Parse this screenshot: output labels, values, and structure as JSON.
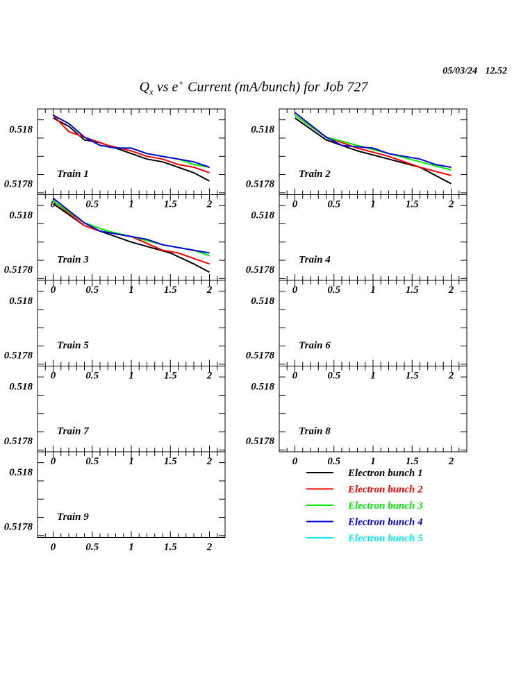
{
  "header": {
    "date": "05/03/24   12.52",
    "title": {
      "q": "Q",
      "q_sub": "x",
      "mid": " vs e",
      "sup": "+",
      "rest": " Current (mA/bunch) for Job 727"
    }
  },
  "colors": {
    "bunch1": "#000000",
    "bunch2": "#ff0000",
    "bunch3": "#00ee00",
    "bunch4": "#0000dd",
    "bunch5": "#00eeee"
  },
  "legend": [
    {
      "label": "Electron bunch 1",
      "color": "#000000"
    },
    {
      "label": "Electron bunch 2",
      "color": "#ff0000"
    },
    {
      "label": "Electron bunch 3",
      "color": "#00ee00"
    },
    {
      "label": "Electron bunch 4",
      "color": "#0000dd"
    },
    {
      "label": "Electron bunch 5",
      "color": "#00eeee"
    }
  ],
  "chart_data": {
    "type": "line",
    "title": "Qx vs e+ Current (mA/bunch) for Job 727",
    "xlim": [
      -0.2,
      2.2
    ],
    "ylim": [
      0.51776,
      0.518073
    ],
    "x_ticks": [
      "0",
      "0.5",
      "1",
      "1.5",
      "2"
    ],
    "x_tick_values": [
      0,
      0.5,
      1,
      1.5,
      2
    ],
    "y_ticks": [
      "0.518",
      "0.5178"
    ],
    "y_tick_values": [
      0.518,
      0.5178
    ],
    "panels": [
      {
        "title": "Train 1",
        "series": [
          {
            "name": "Electron bunch 1",
            "x": [
              0,
              0.2,
              0.4,
              0.6,
              0.8,
              1.0,
              1.2,
              1.4,
              1.6,
              1.8,
              2.0
            ],
            "y": [
              0.51804,
              0.51801,
              0.51796,
              0.51795,
              0.51793,
              0.51791,
              0.51789,
              0.51788,
              0.51786,
              0.51784,
              0.51781
            ]
          },
          {
            "name": "Electron bunch 2",
            "x": [
              0,
              0.1,
              0.2,
              0.3,
              0.5,
              0.7,
              1.0,
              1.2,
              1.4,
              1.6,
              1.8,
              2.0
            ],
            "y": [
              0.51805,
              0.51802,
              0.51799,
              0.51798,
              0.51796,
              0.51794,
              0.51792,
              0.5179,
              0.51789,
              0.51787,
              0.51786,
              0.51784
            ]
          },
          {
            "name": "Electron bunch 3",
            "x": [
              0,
              0.2,
              0.4,
              0.6,
              0.8,
              1.0,
              1.2,
              1.4,
              1.6,
              1.8,
              2.0
            ],
            "y": [
              0.51805,
              0.51802,
              0.51797,
              0.51794,
              0.51793,
              0.51793,
              0.51791,
              0.5179,
              0.51789,
              0.51787,
              0.51786
            ]
          },
          {
            "name": "Electron bunch 4",
            "x": [
              0,
              0.2,
              0.4,
              0.6,
              0.8,
              1.0,
              1.2,
              1.4,
              1.6,
              1.8,
              2.0
            ],
            "y": [
              0.51805,
              0.51802,
              0.51797,
              0.51794,
              0.51793,
              0.51793,
              0.51791,
              0.5179,
              0.51789,
              0.51788,
              0.51786
            ]
          }
        ]
      },
      {
        "title": "Train 2",
        "series": [
          {
            "name": "Electron bunch 1",
            "x": [
              0,
              0.4,
              0.8,
              1.2,
              1.6,
              2.0
            ],
            "y": [
              0.51804,
              0.51796,
              0.51792,
              0.51789,
              0.51786,
              0.5178
            ]
          },
          {
            "name": "Electron bunch 2",
            "x": [
              0,
              0.4,
              0.8,
              1.2,
              1.6,
              2.0
            ],
            "y": [
              0.51805,
              0.51797,
              0.51793,
              0.5179,
              0.51786,
              0.51783
            ]
          },
          {
            "name": "Electron bunch 3",
            "x": [
              0,
              0.4,
              0.8,
              1.2,
              1.6,
              2.0
            ],
            "y": [
              0.51805,
              0.51797,
              0.51794,
              0.51791,
              0.51788,
              0.51785
            ]
          },
          {
            "name": "Electron bunch 4",
            "x": [
              0,
              0.4,
              0.6,
              1.0,
              1.2,
              1.6,
              1.8,
              2.0
            ],
            "y": [
              0.51806,
              0.51797,
              0.51794,
              0.51793,
              0.51791,
              0.51789,
              0.51787,
              0.51786
            ]
          }
        ]
      },
      {
        "title": "Train 3",
        "series": [
          {
            "name": "Electron bunch 1",
            "x": [
              0,
              0.4,
              0.7,
              1.0,
              1.5,
              1.8,
              2.0
            ],
            "y": [
              0.51804,
              0.51796,
              0.51793,
              0.5179,
              0.51786,
              0.51782,
              0.51779
            ]
          },
          {
            "name": "Electron bunch 2",
            "x": [
              0,
              0.4,
              0.6,
              1.0,
              1.4,
              1.6,
              2.0
            ],
            "y": [
              0.51805,
              0.51796,
              0.51794,
              0.51792,
              0.51787,
              0.51786,
              0.51782
            ]
          },
          {
            "name": "Electron bunch 3",
            "x": [
              0,
              0.4,
              0.7,
              1.0,
              1.4,
              1.8,
              2.0
            ],
            "y": [
              0.51805,
              0.51797,
              0.51794,
              0.51792,
              0.51789,
              0.51787,
              0.51785
            ]
          },
          {
            "name": "Electron bunch 4",
            "x": [
              0,
              0.4,
              0.6,
              1.0,
              1.2,
              1.4,
              1.8,
              2.0
            ],
            "y": [
              0.51806,
              0.51797,
              0.51794,
              0.51792,
              0.51791,
              0.51789,
              0.51787,
              0.51786
            ]
          }
        ]
      },
      {
        "title": "Train 4",
        "series": []
      },
      {
        "title": "Train 5",
        "series": []
      },
      {
        "title": "Train 6",
        "series": []
      },
      {
        "title": "Train 7",
        "series": []
      },
      {
        "title": "Train 8",
        "series": []
      },
      {
        "title": "Train 9",
        "series": []
      }
    ]
  }
}
